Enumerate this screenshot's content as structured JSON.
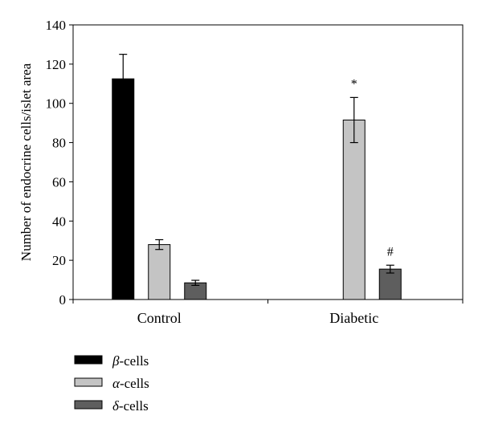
{
  "chart_data": {
    "type": "bar",
    "title": "",
    "xlabel": "",
    "ylabel": "Number of endocrine cells/islet area",
    "ylim": [
      0,
      140
    ],
    "yticks": [
      0,
      20,
      40,
      60,
      80,
      100,
      120,
      140
    ],
    "grid": false,
    "legend_position": "bottom-left",
    "categories": [
      "Control",
      "Diabetic"
    ],
    "series": [
      {
        "name": "β-cells",
        "name_greek": "β",
        "name_suffix": "-cells",
        "color": "#000000",
        "values": [
          112.5,
          null
        ],
        "errors": [
          12.5,
          null
        ],
        "annotations": [
          "",
          ""
        ]
      },
      {
        "name": "α-cells",
        "name_greek": "α",
        "name_suffix": "-cells",
        "color": "#c4c4c4",
        "values": [
          28,
          91.5
        ],
        "errors": [
          2.5,
          11.5
        ],
        "annotations": [
          "",
          "*"
        ]
      },
      {
        "name": "δ-cells",
        "name_greek": "δ",
        "name_suffix": "-cells",
        "color": "#5e5e5e",
        "values": [
          8.5,
          15.5
        ],
        "errors": [
          1.3,
          2.0
        ],
        "annotations": [
          "",
          "#"
        ]
      }
    ]
  }
}
